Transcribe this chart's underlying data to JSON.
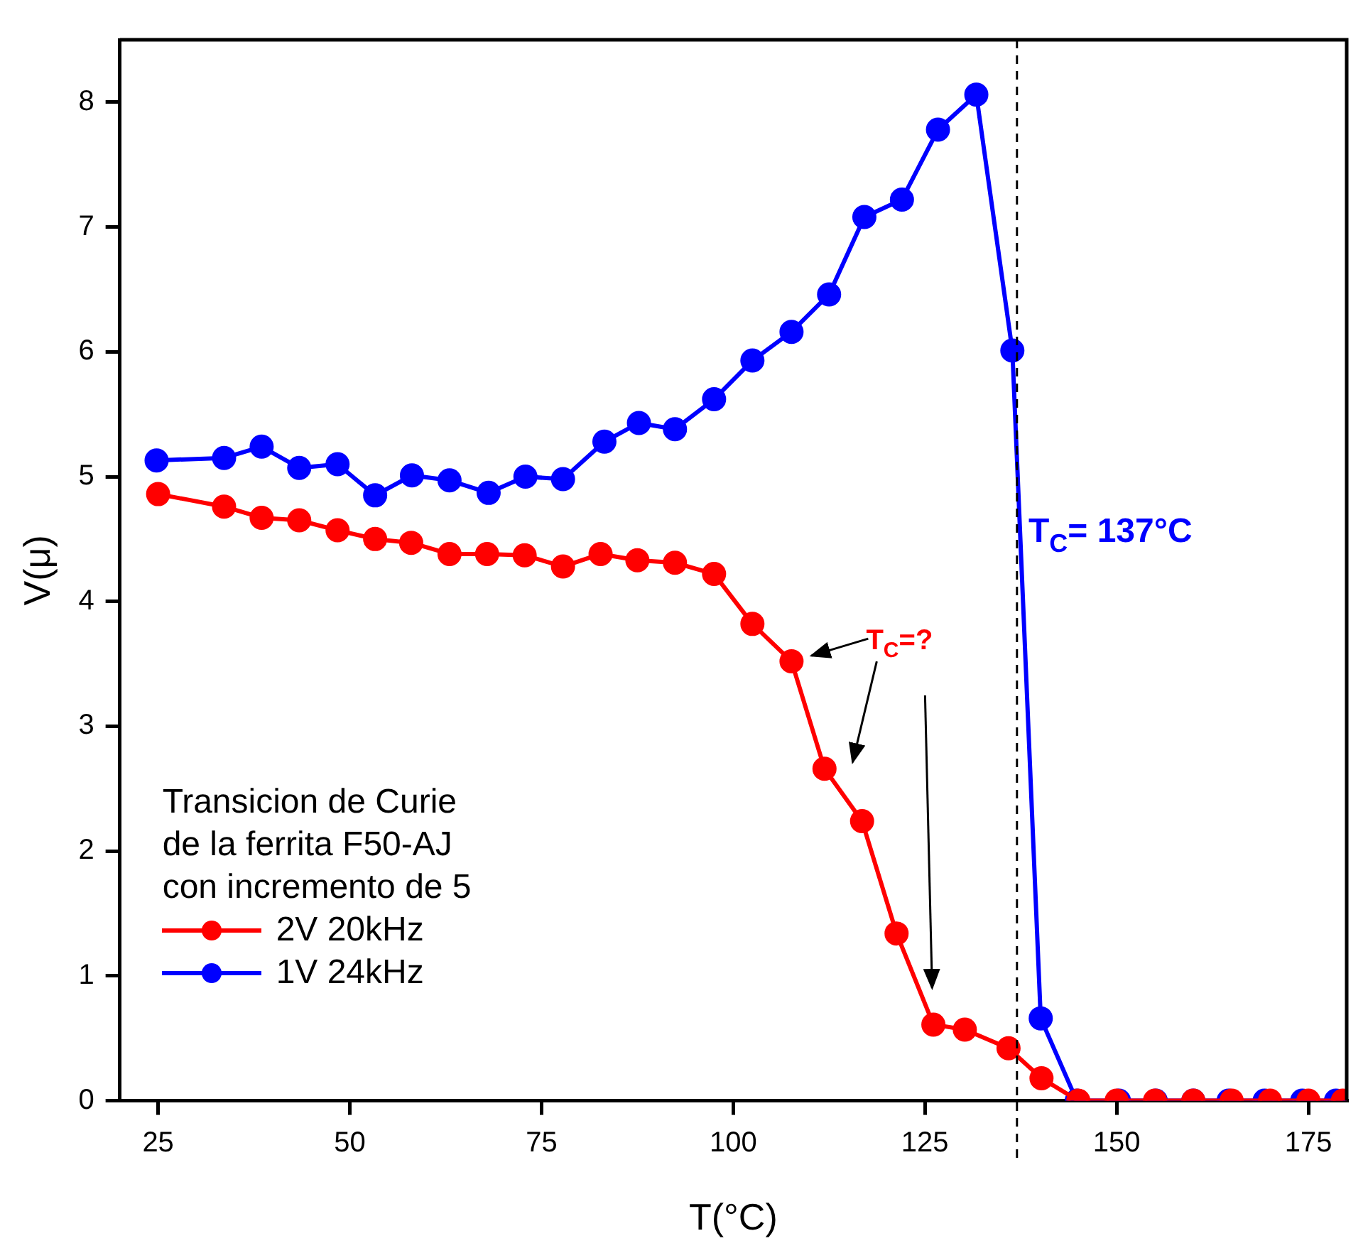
{
  "chart_data": {
    "type": "line",
    "xlabel": "T(°C)",
    "ylabel": "V(μ)",
    "legend_title": "Transicion de Curie\nde la ferrita F50-AJ\ncon incremento de 5",
    "xlim": [
      20,
      180
    ],
    "xticks": [
      25,
      50,
      75,
      100,
      125,
      150,
      175
    ],
    "ylim": [
      0,
      8.5
    ],
    "yticks": [
      0,
      1,
      2,
      3,
      4,
      5,
      6,
      7,
      8
    ],
    "grid": false,
    "legend": "bottom left",
    "marker": "circle",
    "line_style": "solid",
    "series": [
      {
        "name": "2V 20kHz",
        "color": "#ff0000",
        "x": [
          25,
          33.6,
          38.5,
          43.4,
          48.4,
          53.3,
          58,
          63,
          67.9,
          72.8,
          77.8,
          82.7,
          87.5,
          92.4,
          97.5,
          102.5,
          107.6,
          111.9,
          116.8,
          121.3,
          126.1,
          130.2,
          135.9,
          140.2,
          145,
          150,
          155,
          160,
          165,
          170,
          175,
          179.5
        ],
        "values": [
          4.86,
          4.76,
          4.67,
          4.65,
          4.57,
          4.5,
          4.47,
          4.38,
          4.38,
          4.37,
          4.28,
          4.38,
          4.33,
          4.31,
          4.22,
          3.82,
          3.52,
          2.66,
          2.24,
          1.34,
          0.61,
          0.57,
          0.42,
          0.18,
          0,
          0,
          0,
          0,
          0,
          0,
          0,
          0
        ]
      },
      {
        "name": "1V 24kHz",
        "color": "#0000ff",
        "x": [
          24.8,
          33.6,
          38.5,
          43.4,
          48.4,
          53.3,
          58.1,
          63,
          68.1,
          72.9,
          77.8,
          83.2,
          87.7,
          92.4,
          97.5,
          102.5,
          107.6,
          112.5,
          117.1,
          122,
          126.7,
          131.7,
          136.4,
          140.1,
          144.8,
          150.3,
          155.1,
          160,
          164.6,
          169.3,
          174.2,
          178.6
        ],
        "values": [
          5.13,
          5.15,
          5.24,
          5.07,
          5.1,
          4.85,
          5.01,
          4.97,
          4.87,
          5,
          4.98,
          5.28,
          5.43,
          5.38,
          5.62,
          5.93,
          6.16,
          6.46,
          7.08,
          7.22,
          7.78,
          8.06,
          6.01,
          0.66,
          0,
          0,
          0,
          0,
          0,
          0,
          0,
          0
        ]
      }
    ],
    "ref_lines": [
      {
        "axis": "x",
        "value": 137,
        "color": "#000000",
        "line_style": "dashed"
      }
    ],
    "annotations": [
      {
        "text": "T$_{C}$= 137°C",
        "x": 138.5,
        "y": 4.55
      },
      {
        "text": "T$_{C}$=?",
        "x": 107.6,
        "y": 3.52
      }
    ]
  }
}
